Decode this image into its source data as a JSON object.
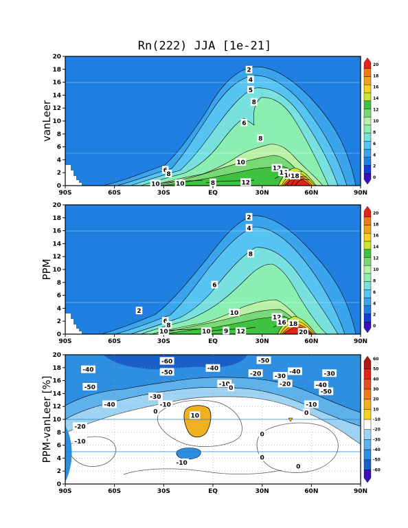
{
  "title": "Rn(222) JJA [1e-21]",
  "chart_data": [
    {
      "type": "contour",
      "ylabel": "vanLeer",
      "x_ticks": [
        "90S",
        "60S",
        "30S",
        "EQ",
        "30N",
        "60N",
        "90N"
      ],
      "y_ticks": [
        0,
        2,
        4,
        6,
        8,
        10,
        12,
        14,
        16,
        18,
        20
      ],
      "ylim": [
        0,
        20
      ],
      "xlim": [
        -90,
        90
      ],
      "colorbar_ticks": [
        0,
        2,
        4,
        6,
        8,
        10,
        12,
        14,
        16,
        18,
        20
      ],
      "contour_labels": [
        {
          "text": "2",
          "lat": 22,
          "z": 17.9
        },
        {
          "text": "4",
          "lat": 23,
          "z": 16.4
        },
        {
          "text": "5",
          "lat": 23,
          "z": 14.8
        },
        {
          "text": "8",
          "lat": 25,
          "z": 12.9
        },
        {
          "text": "6",
          "lat": 19,
          "z": 9.7
        },
        {
          "text": "8",
          "lat": 29,
          "z": 7.3
        },
        {
          "text": "10",
          "lat": 17,
          "z": 3.6
        },
        {
          "text": "6",
          "lat": -29,
          "z": 2.4
        },
        {
          "text": "8",
          "lat": -27,
          "z": 1.8
        },
        {
          "text": "12",
          "lat": 39,
          "z": 2.7
        },
        {
          "text": "14",
          "lat": 43,
          "z": 2.0
        },
        {
          "text": "16",
          "lat": 46,
          "z": 1.6
        },
        {
          "text": "18",
          "lat": 50,
          "z": 1.5
        },
        {
          "text": "10",
          "lat": -35,
          "z": 0.25
        },
        {
          "text": "10",
          "lat": -20,
          "z": 0.3
        },
        {
          "text": "8",
          "lat": 0,
          "z": 0.45
        },
        {
          "text": "12",
          "lat": 20,
          "z": 0.5
        }
      ]
    },
    {
      "type": "contour",
      "ylabel": "PPM",
      "x_ticks": [
        "90S",
        "60S",
        "30S",
        "EQ",
        "30N",
        "60N",
        "90N"
      ],
      "y_ticks": [
        0,
        2,
        4,
        6,
        8,
        10,
        12,
        14,
        16,
        18,
        20
      ],
      "ylim": [
        0,
        20
      ],
      "xlim": [
        -90,
        90
      ],
      "colorbar_ticks": [
        0,
        2,
        4,
        6,
        8,
        10,
        12,
        14,
        16,
        18,
        20
      ],
      "contour_labels": [
        {
          "text": "2",
          "lat": 22,
          "z": 18.1
        },
        {
          "text": "4",
          "lat": 22,
          "z": 16.4
        },
        {
          "text": "8",
          "lat": 23,
          "z": 12.4
        },
        {
          "text": "6",
          "lat": 1,
          "z": 7.6
        },
        {
          "text": "2",
          "lat": -45,
          "z": 3.6
        },
        {
          "text": "10",
          "lat": 13,
          "z": 3.3
        },
        {
          "text": "6",
          "lat": -29,
          "z": 2.0
        },
        {
          "text": "8",
          "lat": -27,
          "z": 1.4
        },
        {
          "text": "12",
          "lat": 39,
          "z": 2.6
        },
        {
          "text": "16",
          "lat": 42,
          "z": 1.8
        },
        {
          "text": "18",
          "lat": 49,
          "z": 1.6
        },
        {
          "text": "10",
          "lat": -30,
          "z": 0.4
        },
        {
          "text": "10",
          "lat": -4,
          "z": 0.4
        },
        {
          "text": "9",
          "lat": 8,
          "z": 0.5
        },
        {
          "text": "12",
          "lat": 17,
          "z": 0.4
        },
        {
          "text": "20",
          "lat": 55,
          "z": 0.3
        }
      ]
    },
    {
      "type": "contour",
      "ylabel": "PPM-vanLeer [%]",
      "x_ticks": [
        "90S",
        "60S",
        "30S",
        "EQ",
        "30N",
        "60N",
        "90N"
      ],
      "y_ticks": [
        0,
        2,
        4,
        6,
        8,
        10,
        12,
        14,
        16,
        18,
        20
      ],
      "ylim": [
        0,
        20
      ],
      "xlim": [
        -90,
        90
      ],
      "colorbar_ticks": [
        -60,
        -50,
        -40,
        -30,
        -20,
        -10,
        10,
        20,
        30,
        40,
        50,
        60
      ],
      "contour_labels": [
        {
          "text": "-60",
          "lat": -28,
          "z": 19.0
        },
        {
          "text": "-50",
          "lat": 31,
          "z": 19.1
        },
        {
          "text": "-40",
          "lat": -76,
          "z": 17.7
        },
        {
          "text": "-50",
          "lat": -28,
          "z": 17.3
        },
        {
          "text": "-40",
          "lat": 0,
          "z": 17.9
        },
        {
          "text": "-20",
          "lat": 26,
          "z": 17.1
        },
        {
          "text": "-40",
          "lat": 50,
          "z": 17.4
        },
        {
          "text": "-30",
          "lat": 41,
          "z": 16.7
        },
        {
          "text": "-30",
          "lat": 71,
          "z": 17.1
        },
        {
          "text": "-50",
          "lat": -75,
          "z": 15.0
        },
        {
          "text": "-10",
          "lat": 7,
          "z": 15.5
        },
        {
          "text": "0",
          "lat": 11,
          "z": 14.9
        },
        {
          "text": "-20",
          "lat": 44,
          "z": 15.5
        },
        {
          "text": "-40",
          "lat": 66,
          "z": 15.3
        },
        {
          "text": "-50",
          "lat": 69,
          "z": 14.3
        },
        {
          "text": "-30",
          "lat": -35,
          "z": 13.5
        },
        {
          "text": "-10",
          "lat": -29,
          "z": 12.3
        },
        {
          "text": "-40",
          "lat": -63,
          "z": 12.3
        },
        {
          "text": "-10",
          "lat": 60,
          "z": 12.3
        },
        {
          "text": "0",
          "lat": -35,
          "z": 11.2
        },
        {
          "text": "10",
          "lat": -11,
          "z": 10.6
        },
        {
          "text": "0",
          "lat": 57,
          "z": 11.0
        },
        {
          "text": "-20",
          "lat": -81,
          "z": 8.9
        },
        {
          "text": "0",
          "lat": 30,
          "z": 7.7
        },
        {
          "text": "-10",
          "lat": -81,
          "z": 6.6
        },
        {
          "text": "-10",
          "lat": -19,
          "z": 3.3
        },
        {
          "text": "0",
          "lat": 30,
          "z": 4.1
        },
        {
          "text": "0",
          "lat": 52,
          "z": 2.7
        }
      ]
    }
  ]
}
